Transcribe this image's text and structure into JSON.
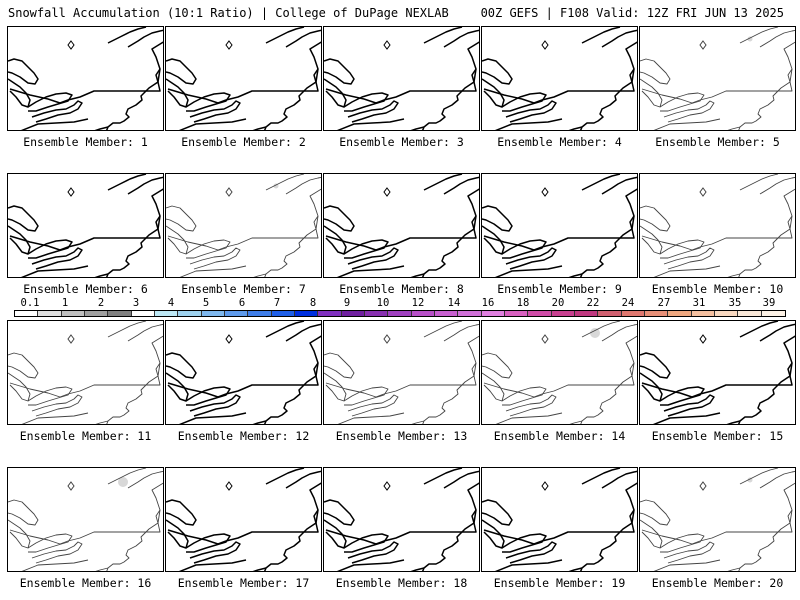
{
  "header": {
    "left_title": "Snowfall Accumulation (10:1 Ratio) | College of DuPage NEXLAB",
    "right_title": "00Z GEFS | F108 Valid: 12Z FRI JUN 13 2025"
  },
  "colorbar": {
    "labels": [
      "0.1",
      "1",
      "2",
      "3",
      "4",
      "5",
      "6",
      "7",
      "8",
      "9",
      "10",
      "12",
      "14",
      "16",
      "18",
      "20",
      "22",
      "24",
      "27",
      "31",
      "35",
      "39"
    ],
    "colors": [
      "#ffffff",
      "#e0e0e0",
      "#c0c0c0",
      "#a0a0a0",
      "#808080",
      "#ffffff",
      "#bde8f5",
      "#9fd3f0",
      "#7fb8ee",
      "#5f9bec",
      "#3f7ee9",
      "#2060e8",
      "#0030e0",
      "#8030c0",
      "#7020a0",
      "#8830b0",
      "#a040c0",
      "#b850c8",
      "#c860d0",
      "#d070d8",
      "#e080e0",
      "#d860c0",
      "#d04ca8",
      "#c84090",
      "#c03880",
      "#d06070",
      "#e07870",
      "#e89078",
      "#f0a880",
      "#f5c0a0",
      "#f8d8c0",
      "#fae8d8",
      "#fdf2e6"
    ]
  },
  "panels": [
    {
      "label": "Ensemble Member: 1"
    },
    {
      "label": "Ensemble Member: 2"
    },
    {
      "label": "Ensemble Member: 3"
    },
    {
      "label": "Ensemble Member: 4"
    },
    {
      "label": "Ensemble Member: 5"
    },
    {
      "label": "Ensemble Member: 6"
    },
    {
      "label": "Ensemble Member: 7"
    },
    {
      "label": "Ensemble Member: 8"
    },
    {
      "label": "Ensemble Member: 9"
    },
    {
      "label": "Ensemble Member: 10"
    },
    {
      "label": "Ensemble Member: 11"
    },
    {
      "label": "Ensemble Member: 12"
    },
    {
      "label": "Ensemble Member: 13"
    },
    {
      "label": "Ensemble Member: 14"
    },
    {
      "label": "Ensemble Member: 15"
    },
    {
      "label": "Ensemble Member: 16"
    },
    {
      "label": "Ensemble Member: 17"
    },
    {
      "label": "Ensemble Member: 18"
    },
    {
      "label": "Ensemble Member: 19"
    },
    {
      "label": "Ensemble Member: 20"
    }
  ],
  "map": {
    "line_color": "#000000",
    "light_line_color": "#444444",
    "snow_color": "#d8d8d8"
  }
}
